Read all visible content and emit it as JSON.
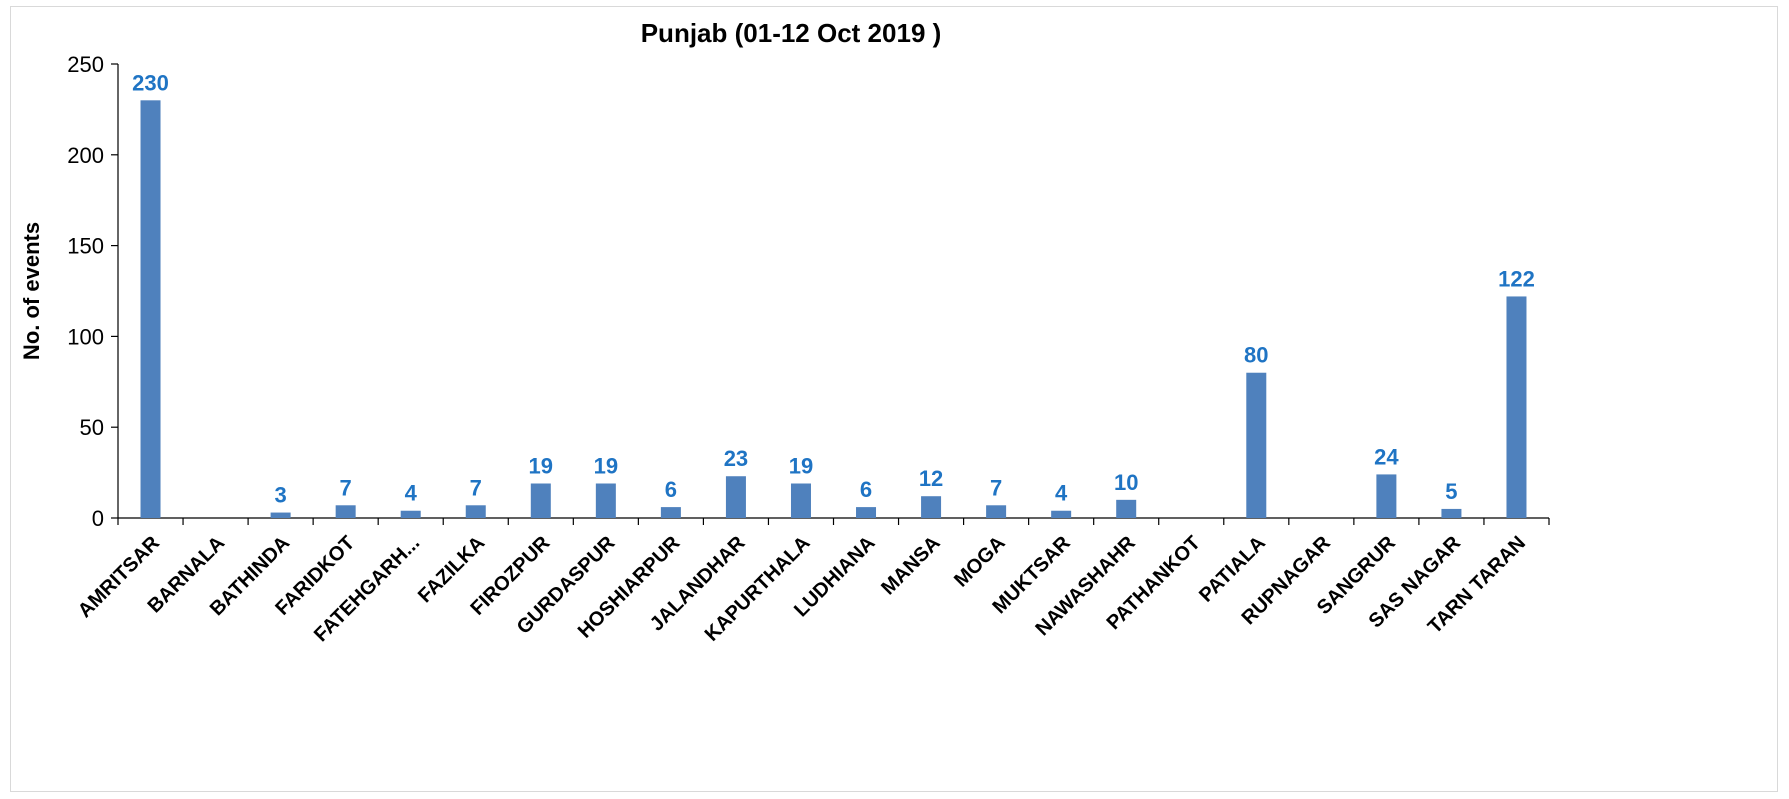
{
  "chart_data": {
    "type": "bar",
    "title": "Punjab (01-12 Oct 2019 )",
    "xlabel": "",
    "ylabel": "No. of events",
    "ylim": [
      0,
      250
    ],
    "yticks": [
      0,
      50,
      100,
      150,
      200,
      250
    ],
    "grid": false,
    "legend": "none",
    "bar_color": "#4f81bd",
    "label_color": "#1f74c4",
    "categories": [
      "AMRITSAR",
      "BARNALA",
      "BATHINDA",
      "FARIDKOT",
      "FATEHGARH...",
      "FAZILKA",
      "FIROZPUR",
      "GURDASPUR",
      "HOSHIARPUR",
      "JALANDHAR",
      "KAPURTHALA",
      "LUDHIANA",
      "MANSA",
      "MOGA",
      "MUKTSAR",
      "NAWASHAHR",
      "PATHANKOT",
      "PATIALA",
      "RUPNAGAR",
      "SANGRUR",
      "SAS NAGAR",
      "TARN TARAN"
    ],
    "values": [
      230,
      0,
      3,
      7,
      4,
      7,
      19,
      19,
      6,
      23,
      19,
      6,
      12,
      7,
      4,
      10,
      0,
      80,
      0,
      24,
      5,
      122
    ],
    "data_labels": [
      "230",
      "",
      "3",
      "7",
      "4",
      "7",
      "19",
      "19",
      "6",
      "23",
      "19",
      "6",
      "12",
      "7",
      "4",
      "10",
      "",
      "80",
      "",
      "24",
      "5",
      "122"
    ]
  }
}
